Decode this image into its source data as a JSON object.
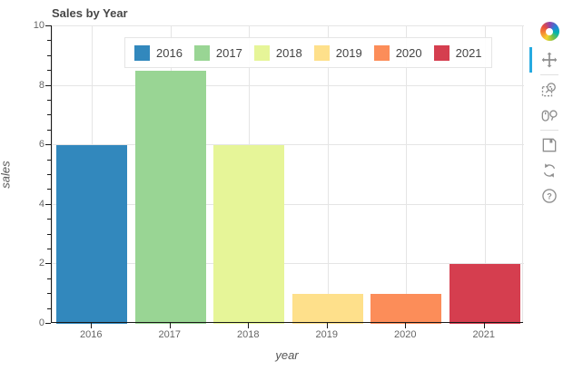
{
  "figure": {
    "title": "Sales by Year"
  },
  "chart_data": {
    "type": "bar",
    "title": "Sales by Year",
    "categories": [
      "2016",
      "2017",
      "2018",
      "2019",
      "2020",
      "2021"
    ],
    "values": [
      6,
      8.5,
      6,
      1,
      1,
      2
    ],
    "bar_colors": [
      "#3288bd",
      "#99d594",
      "#e6f598",
      "#fee08b",
      "#fc8d59",
      "#d53e4f"
    ],
    "xlabel": "year",
    "ylabel": "sales",
    "ylim": [
      0,
      10
    ],
    "ytick_labels": [
      "0",
      "2",
      "4",
      "6",
      "8",
      "10"
    ],
    "ytick_step": 2,
    "yminor_step": 0.5,
    "grid": true,
    "legend_position": "top-center",
    "legend_entries": [
      {
        "label": "2016",
        "color": "#3288bd"
      },
      {
        "label": "2017",
        "color": "#99d594"
      },
      {
        "label": "2018",
        "color": "#e6f598"
      },
      {
        "label": "2019",
        "color": "#fee08b"
      },
      {
        "label": "2020",
        "color": "#fc8d59"
      },
      {
        "label": "2021",
        "color": "#d53e4f"
      }
    ]
  },
  "toolbar": {
    "logo": "bokeh-logo",
    "active_tool": "pan",
    "tools": [
      {
        "name": "pan",
        "active": true
      },
      {
        "name": "box-zoom",
        "active": false
      },
      {
        "name": "wheel-zoom",
        "active": false
      },
      {
        "name": "save",
        "active": false
      },
      {
        "name": "reset",
        "active": false
      },
      {
        "name": "help",
        "active": false
      }
    ]
  },
  "colors": {
    "active_tool_accent": "#26aae1",
    "grid_line": "#e5e5e5",
    "axis_line": "#1a1a1a",
    "text": "#444444"
  }
}
